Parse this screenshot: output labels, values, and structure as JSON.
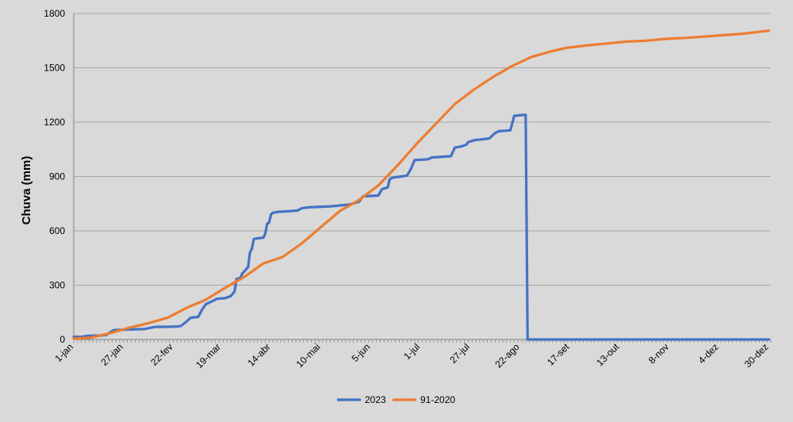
{
  "chart_data": {
    "type": "line",
    "title": "",
    "xlabel": "",
    "ylabel": "Chuva (mm)",
    "ylim": [
      0,
      1800
    ],
    "yticks": [
      0,
      300,
      600,
      900,
      1200,
      1500,
      1800
    ],
    "x_range_days": [
      1,
      365
    ],
    "grid": "horizontal",
    "legend_position": "bottom",
    "x_ticks": [
      {
        "day": 1,
        "label": "1-jan"
      },
      {
        "day": 27,
        "label": "27-jan"
      },
      {
        "day": 53,
        "label": "22-fev"
      },
      {
        "day": 78,
        "label": "19-mar"
      },
      {
        "day": 104,
        "label": "14-abr"
      },
      {
        "day": 130,
        "label": "10-mai"
      },
      {
        "day": 156,
        "label": "5-jun"
      },
      {
        "day": 182,
        "label": "1-jul"
      },
      {
        "day": 208,
        "label": "27-jul"
      },
      {
        "day": 234,
        "label": "22-ago"
      },
      {
        "day": 260,
        "label": "17-set"
      },
      {
        "day": 286,
        "label": "13-out"
      },
      {
        "day": 312,
        "label": "8-nov"
      },
      {
        "day": 338,
        "label": "4-dez"
      },
      {
        "day": 364,
        "label": "30-dez"
      }
    ],
    "series": [
      {
        "name": "2023",
        "color": "#4472c4",
        "points": [
          [
            1,
            15
          ],
          [
            5,
            15
          ],
          [
            8,
            20
          ],
          [
            15,
            22
          ],
          [
            18,
            25
          ],
          [
            20,
            40
          ],
          [
            22,
            52
          ],
          [
            30,
            55
          ],
          [
            38,
            58
          ],
          [
            41,
            65
          ],
          [
            44,
            70
          ],
          [
            50,
            70
          ],
          [
            55,
            72
          ],
          [
            57,
            75
          ],
          [
            60,
            100
          ],
          [
            62,
            120
          ],
          [
            66,
            125
          ],
          [
            68,
            165
          ],
          [
            70,
            195
          ],
          [
            73,
            210
          ],
          [
            76,
            225
          ],
          [
            80,
            228
          ],
          [
            83,
            240
          ],
          [
            85,
            265
          ],
          [
            86,
            335
          ],
          [
            88,
            340
          ],
          [
            89,
            365
          ],
          [
            90,
            375
          ],
          [
            92,
            400
          ],
          [
            93,
            480
          ],
          [
            94,
            500
          ],
          [
            95,
            555
          ],
          [
            98,
            560
          ],
          [
            100,
            562
          ],
          [
            101,
            585
          ],
          [
            102,
            640
          ],
          [
            103,
            645
          ],
          [
            104,
            690
          ],
          [
            105,
            700
          ],
          [
            108,
            705
          ],
          [
            113,
            708
          ],
          [
            118,
            712
          ],
          [
            120,
            725
          ],
          [
            124,
            730
          ],
          [
            128,
            732
          ],
          [
            135,
            735
          ],
          [
            140,
            740
          ],
          [
            145,
            745
          ],
          [
            148,
            755
          ],
          [
            150,
            760
          ],
          [
            152,
            790
          ],
          [
            160,
            795
          ],
          [
            162,
            830
          ],
          [
            165,
            840
          ],
          [
            166,
            885
          ],
          [
            168,
            895
          ],
          [
            172,
            900
          ],
          [
            175,
            905
          ],
          [
            177,
            940
          ],
          [
            179,
            990
          ],
          [
            186,
            995
          ],
          [
            188,
            1005
          ],
          [
            198,
            1012
          ],
          [
            200,
            1060
          ],
          [
            203,
            1065
          ],
          [
            206,
            1075
          ],
          [
            207,
            1090
          ],
          [
            210,
            1100
          ],
          [
            214,
            1105
          ],
          [
            218,
            1110
          ],
          [
            221,
            1140
          ],
          [
            223,
            1150
          ],
          [
            229,
            1155
          ],
          [
            231,
            1235
          ],
          [
            236,
            1240
          ],
          [
            237,
            1240
          ],
          [
            238,
            0
          ],
          [
            364,
            0
          ]
        ]
      },
      {
        "name": "91-2020",
        "color": "#ed7d31",
        "points": [
          [
            1,
            5
          ],
          [
            10,
            10
          ],
          [
            20,
            35
          ],
          [
            30,
            65
          ],
          [
            40,
            90
          ],
          [
            50,
            120
          ],
          [
            60,
            175
          ],
          [
            70,
            220
          ],
          [
            80,
            285
          ],
          [
            90,
            345
          ],
          [
            100,
            420
          ],
          [
            110,
            455
          ],
          [
            120,
            530
          ],
          [
            130,
            620
          ],
          [
            140,
            710
          ],
          [
            150,
            770
          ],
          [
            160,
            850
          ],
          [
            170,
            960
          ],
          [
            180,
            1080
          ],
          [
            190,
            1190
          ],
          [
            200,
            1300
          ],
          [
            210,
            1380
          ],
          [
            220,
            1450
          ],
          [
            230,
            1510
          ],
          [
            240,
            1560
          ],
          [
            250,
            1590
          ],
          [
            258,
            1610
          ],
          [
            270,
            1625
          ],
          [
            280,
            1635
          ],
          [
            290,
            1645
          ],
          [
            300,
            1650
          ],
          [
            310,
            1660
          ],
          [
            320,
            1665
          ],
          [
            330,
            1672
          ],
          [
            340,
            1680
          ],
          [
            350,
            1688
          ],
          [
            364,
            1705
          ]
        ]
      }
    ]
  }
}
